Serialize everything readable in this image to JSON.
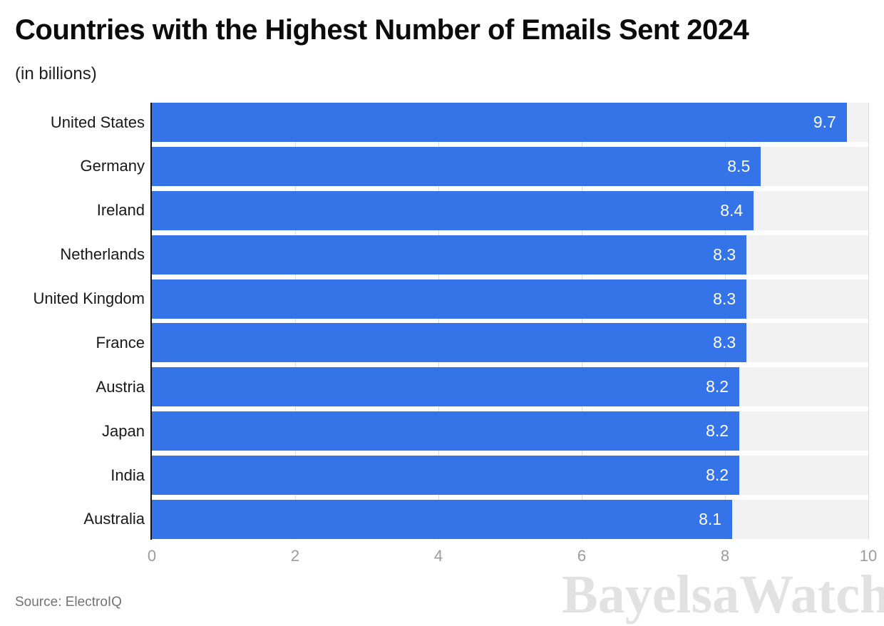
{
  "header": {
    "title": "Countries with the Highest Number of Emails Sent 2024",
    "subtitle": "(in billions)"
  },
  "chart_data": {
    "type": "bar",
    "orientation": "horizontal",
    "title": "Countries with the Highest Number of Emails Sent 2024",
    "subtitle": "(in billions)",
    "unit": "billions",
    "categories": [
      "United States",
      "Germany",
      "Ireland",
      "Netherlands",
      "United Kingdom",
      "France",
      "Austria",
      "Japan",
      "India",
      "Australia"
    ],
    "values": [
      9.7,
      8.5,
      8.4,
      8.3,
      8.3,
      8.3,
      8.2,
      8.2,
      8.2,
      8.1
    ],
    "value_labels": [
      "9.7",
      "8.5",
      "8.4",
      "8.3",
      "8.3",
      "8.3",
      "8.2",
      "8.2",
      "8.2",
      "8.1"
    ],
    "xlabel": "",
    "ylabel": "",
    "xlim": [
      0,
      10
    ],
    "xticks": [
      0,
      2,
      4,
      6,
      8,
      10
    ],
    "grid": true,
    "legend_position": "none",
    "bar_color": "#3473e8",
    "track_color": "#f2f2f2",
    "gridline_color": "#dedede",
    "axis_line_color": "#141414",
    "value_label_color": "#ffffff",
    "tick_label_color": "#9c9c9c"
  },
  "footer": {
    "source": "Source: ElectroIQ",
    "watermark": "BayelsaWatch"
  }
}
